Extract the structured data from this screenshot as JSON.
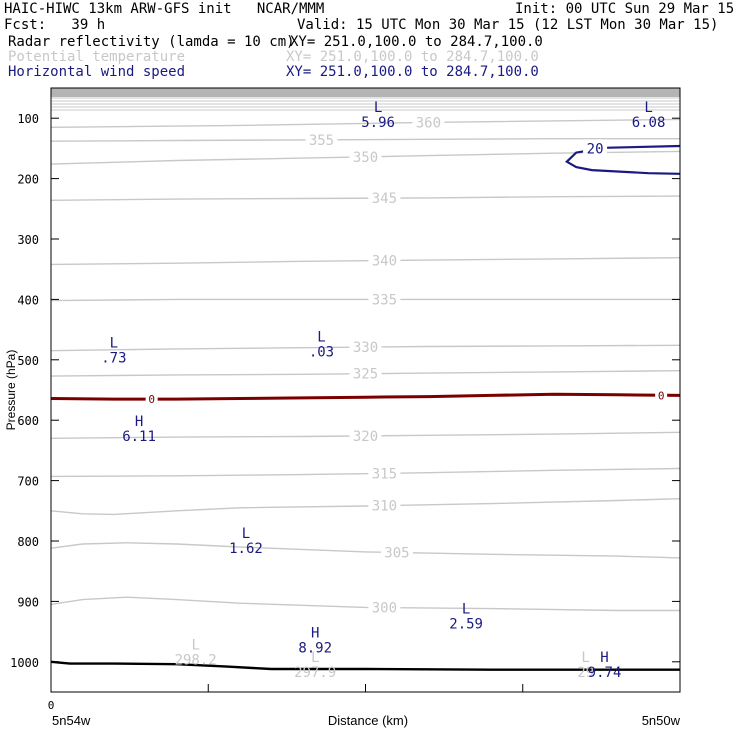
{
  "header": {
    "line1_left": "HAIC-HIWC 13km ARW-GFS init   NCAR/MMM",
    "line1_right": "Init: 00 UTC Sun 29 Mar 15",
    "line2_left": "Fcst:   39 h",
    "line2_right": "Valid: 15 UTC Mon 30 Mar 15 (12 LST Mon 30 Mar 15)",
    "field1_name": "Radar reflectivity (lamda = 10 cm)",
    "field1_xy": "XY= 251.0,100.0 to 284.7,100.0",
    "field2_name": "Potential temperature",
    "field2_xy": "XY= 251.0,100.0 to 284.7,100.0",
    "field3_name": "Horizontal wind speed",
    "field3_xy": "XY= 251.0,100.0 to 284.7,100.0"
  },
  "colors": {
    "theta": "#c8c8c8",
    "wind": "#1a1a80",
    "zero_line": "#7a0000",
    "terrain": "#000000"
  },
  "chart_data": {
    "type": "line",
    "title": "",
    "xlabel": "Distance (km)",
    "ylabel": "Pressure (hPa)",
    "xlim": [
      0,
      1
    ],
    "ylim": [
      1050,
      50
    ],
    "x_ticks": [
      "0",
      "",
      "",
      "",
      ""
    ],
    "x_end_labels": [
      "5n54w",
      "5n50w"
    ],
    "y_ticks": [
      100,
      200,
      300,
      400,
      500,
      600,
      700,
      800,
      900,
      1000
    ],
    "theta_contours": [
      {
        "label": "300",
        "x": [
          0,
          0.05,
          0.12,
          0.2,
          0.3,
          0.5,
          0.7,
          0.9,
          1.0
        ],
        "p": [
          905,
          897,
          893,
          897,
          903,
          910,
          912,
          915,
          915
        ],
        "lx": 0.53
      },
      {
        "label": "305",
        "x": [
          0,
          0.05,
          0.12,
          0.2,
          0.3,
          0.5,
          0.7,
          0.9,
          1.0
        ],
        "p": [
          812,
          805,
          803,
          805,
          810,
          818,
          822,
          825,
          828
        ],
        "lx": 0.55
      },
      {
        "label": "310",
        "x": [
          0,
          0.05,
          0.1,
          0.2,
          0.3,
          0.5,
          0.7,
          0.9,
          1.0
        ],
        "p": [
          750,
          755,
          756,
          750,
          745,
          742,
          738,
          733,
          730
        ],
        "lx": 0.53
      },
      {
        "label": "315",
        "x": [
          0,
          0.2,
          0.4,
          0.6,
          0.8,
          1.0
        ],
        "p": [
          693,
          692,
          690,
          687,
          683,
          680
        ],
        "lx": 0.53
      },
      {
        "label": "320",
        "x": [
          0,
          0.2,
          0.4,
          0.6,
          0.8,
          1.0
        ],
        "p": [
          630,
          628,
          627,
          625,
          623,
          620
        ],
        "lx": 0.5
      },
      {
        "label": "325",
        "x": [
          0,
          0.2,
          0.4,
          0.6,
          0.8,
          1.0
        ],
        "p": [
          527,
          525,
          524,
          522,
          520,
          518
        ],
        "lx": 0.5
      },
      {
        "label": "330",
        "x": [
          0,
          0.2,
          0.4,
          0.6,
          0.8,
          1.0
        ],
        "p": [
          485,
          482,
          480,
          478,
          477,
          476
        ],
        "lx": 0.5
      },
      {
        "label": "335",
        "x": [
          0,
          0.2,
          0.4,
          0.6,
          0.8,
          1.0
        ],
        "p": [
          402,
          400,
          400,
          400,
          400,
          400
        ],
        "lx": 0.53
      },
      {
        "label": "340",
        "x": [
          0,
          0.2,
          0.4,
          0.6,
          0.8,
          1.0
        ],
        "p": [
          342,
          340,
          337,
          335,
          333,
          331
        ],
        "lx": 0.53
      },
      {
        "label": "345",
        "x": [
          0,
          0.2,
          0.4,
          0.6,
          0.8,
          1.0
        ],
        "p": [
          236,
          234,
          233,
          232,
          230,
          229
        ],
        "lx": 0.53
      },
      {
        "label": "350",
        "x": [
          0,
          0.2,
          0.4,
          0.6,
          0.8,
          1.0
        ],
        "p": [
          176,
          170,
          166,
          162,
          158,
          155
        ],
        "lx": 0.5
      },
      {
        "label": "355",
        "x": [
          0,
          0.2,
          0.4,
          0.6,
          0.8,
          1.0
        ],
        "p": [
          138,
          137,
          136,
          135,
          134,
          134
        ],
        "lx": 0.43
      },
      {
        "label": "360",
        "x": [
          0,
          0.3,
          0.6,
          1.0
        ],
        "p": [
          115,
          112,
          107,
          102
        ],
        "lx": 0.6
      }
    ],
    "zero_line": {
      "label": "0",
      "x": [
        0,
        0.1,
        0.2,
        0.3,
        0.4,
        0.5,
        0.6,
        0.7,
        0.8,
        0.9,
        1.0
      ],
      "p": [
        564,
        565,
        565,
        564,
        563,
        562,
        561,
        559,
        557,
        558,
        559
      ]
    },
    "terrain": {
      "x": [
        0,
        0.03,
        0.1,
        0.2,
        0.28,
        0.35,
        0.5,
        0.7,
        0.9,
        1.0
      ],
      "p": [
        1000,
        1003,
        1003,
        1004,
        1008,
        1012,
        1012,
        1013,
        1013,
        1013
      ]
    },
    "wind_contour": {
      "label": "20",
      "x": [
        1.0,
        0.88,
        0.835,
        0.82,
        0.835,
        0.86,
        0.95,
        1.0
      ],
      "p": [
        146,
        149,
        157,
        172,
        181,
        186,
        191,
        192
      ]
    },
    "annotations": [
      {
        "marker": "L",
        "value": "5.96",
        "x": 0.52,
        "p": 90,
        "color": "wind"
      },
      {
        "marker": "L",
        "value": "6.08",
        "x": 0.95,
        "p": 90,
        "color": "wind"
      },
      {
        "marker": "L",
        "value": ".73",
        "x": 0.1,
        "p": 480,
        "color": "wind"
      },
      {
        "marker": "L",
        "value": ".03",
        "x": 0.43,
        "p": 470,
        "color": "wind"
      },
      {
        "marker": "H",
        "value": "6.11",
        "x": 0.14,
        "p": 610,
        "color": "wind"
      },
      {
        "marker": "L",
        "value": "1.62",
        "x": 0.31,
        "p": 795,
        "color": "wind"
      },
      {
        "marker": "L",
        "value": "2.59",
        "x": 0.66,
        "p": 920,
        "color": "wind"
      },
      {
        "marker": "H",
        "value": "8.92",
        "x": 0.42,
        "p": 960,
        "color": "wind"
      },
      {
        "marker": "L",
        "value": "298.2",
        "x": 0.23,
        "p": 980,
        "color": "theta"
      },
      {
        "marker": "L",
        "value": "297.9",
        "x": 0.42,
        "p": 1000,
        "color": "theta"
      },
      {
        "marker": "L",
        "value": "29",
        "x": 0.85,
        "p": 1000,
        "color": "theta"
      },
      {
        "marker": "H",
        "value": "9.74",
        "x": 0.88,
        "p": 1000,
        "color": "wind"
      }
    ]
  }
}
